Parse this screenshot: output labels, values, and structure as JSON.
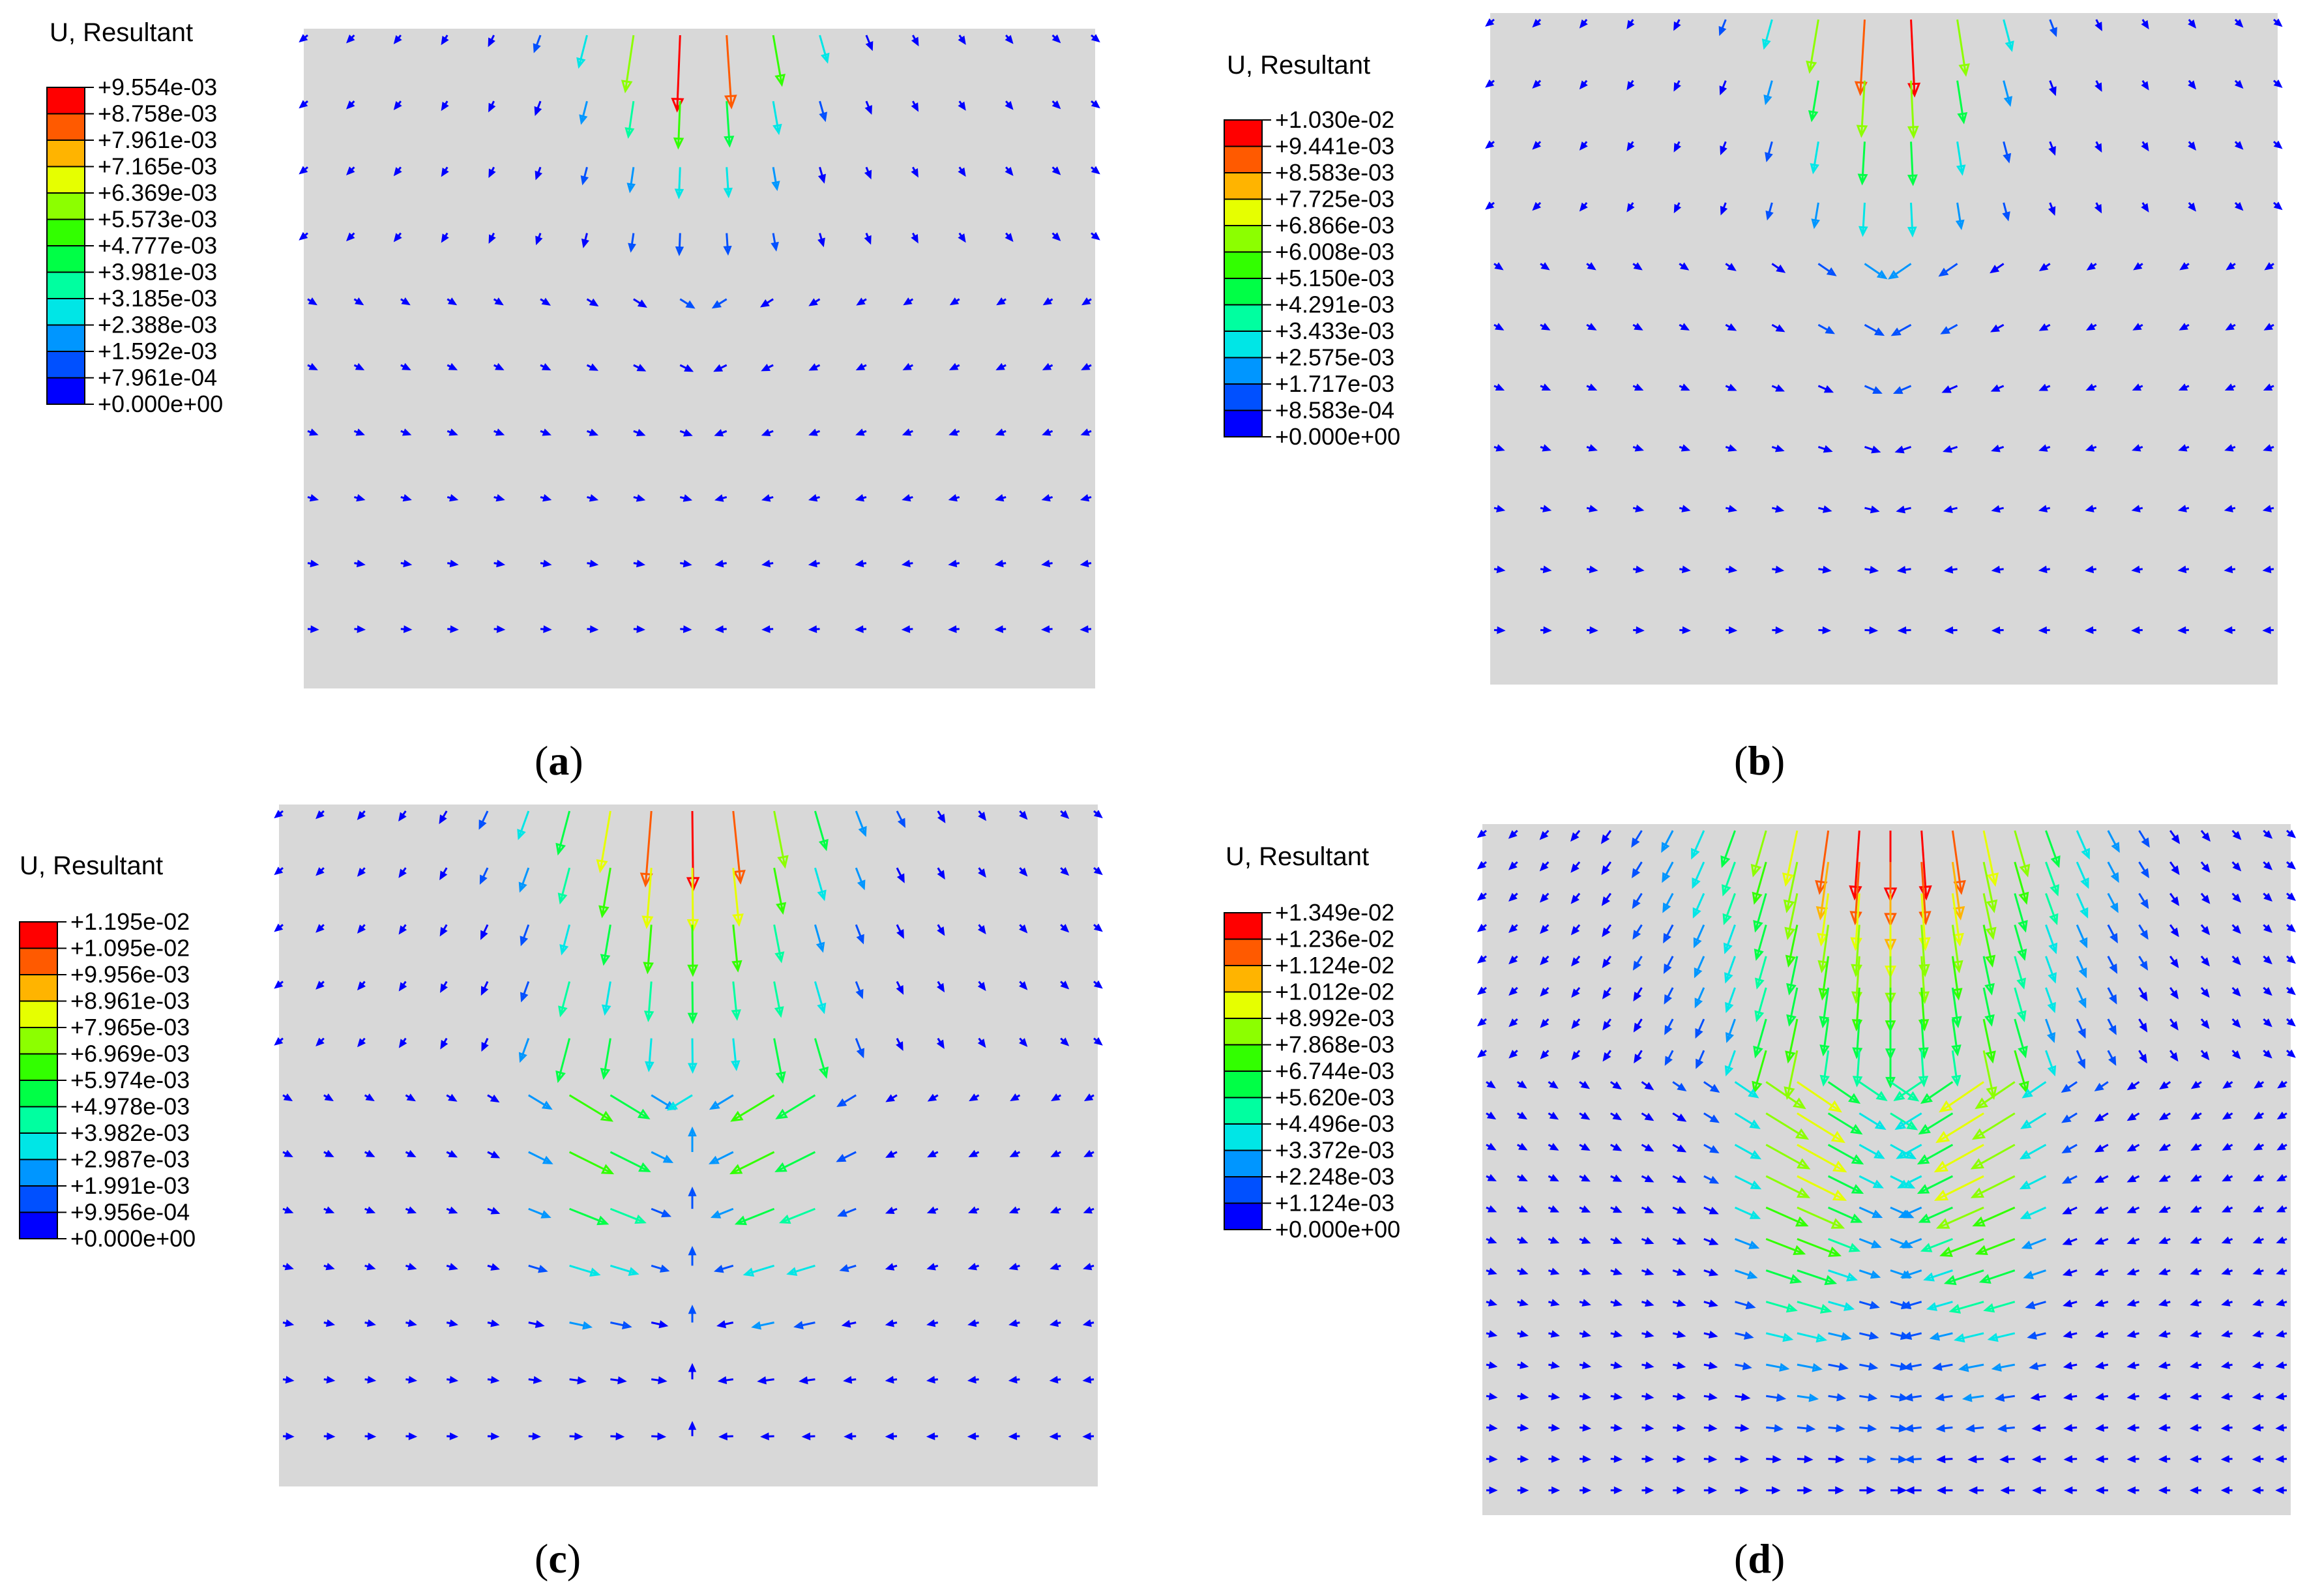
{
  "figure": {
    "panels": [
      {
        "id": "a",
        "legend_title": "U, Resultant",
        "legend_values": [
          "+9.554e-03",
          "+8.758e-03",
          "+7.961e-03",
          "+7.165e-03",
          "+6.369e-03",
          "+5.573e-03",
          "+4.777e-03",
          "+3.981e-03",
          "+3.185e-03",
          "+2.388e-03",
          "+1.592e-03",
          "+7.961e-04",
          "+0.000e+00"
        ],
        "caption_label": "a"
      },
      {
        "id": "b",
        "legend_title": "U, Resultant",
        "legend_values": [
          "+1.030e-02",
          "+9.441e-03",
          "+8.583e-03",
          "+7.725e-03",
          "+6.866e-03",
          "+6.008e-03",
          "+5.150e-03",
          "+4.291e-03",
          "+3.433e-03",
          "+2.575e-03",
          "+1.717e-03",
          "+8.583e-04",
          "+0.000e+00"
        ],
        "caption_label": "b"
      },
      {
        "id": "c",
        "legend_title": "U, Resultant",
        "legend_values": [
          "+1.195e-02",
          "+1.095e-02",
          "+9.956e-03",
          "+8.961e-03",
          "+7.965e-03",
          "+6.969e-03",
          "+5.974e-03",
          "+4.978e-03",
          "+3.982e-03",
          "+2.987e-03",
          "+1.991e-03",
          "+9.956e-04",
          "+0.000e+00"
        ],
        "caption_label": "c"
      },
      {
        "id": "d",
        "legend_title": "U, Resultant",
        "legend_values": [
          "+1.349e-02",
          "+1.236e-02",
          "+1.124e-02",
          "+1.012e-02",
          "+8.992e-03",
          "+7.868e-03",
          "+6.744e-03",
          "+5.620e-03",
          "+4.496e-03",
          "+3.372e-03",
          "+2.248e-03",
          "+1.124e-03",
          "+0.000e+00"
        ],
        "caption_label": "d"
      }
    ],
    "colors": {
      "legend_bands": [
        "#ff0000",
        "#ff5a00",
        "#ffb400",
        "#e6ff00",
        "#8cff00",
        "#32ff00",
        "#00ff46",
        "#00ffa0",
        "#00e6e6",
        "#0096ff",
        "#0050ff",
        "#0000ff"
      ],
      "field_background": "#d8d8d8"
    }
  }
}
